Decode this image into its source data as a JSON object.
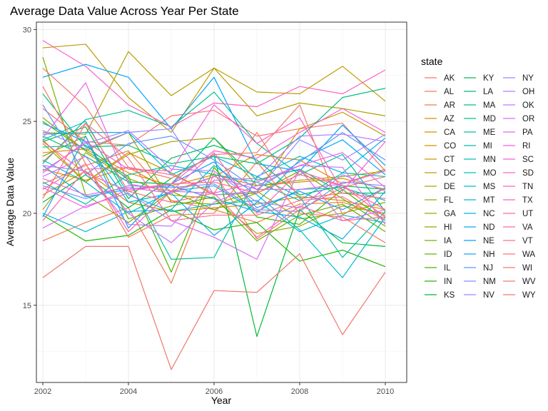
{
  "chart_data": {
    "type": "line",
    "title": "Average Data Value Across Year Per State",
    "xlabel": "Year",
    "ylabel": "Average Data Value",
    "xlim": [
      2001.85,
      2010.5
    ],
    "ylim": [
      10.8,
      30.4
    ],
    "x_ticks": [
      2002,
      2004,
      2006,
      2008,
      2010
    ],
    "y_ticks": [
      15,
      20,
      25,
      30
    ],
    "grid": true,
    "legend": {
      "title": "state",
      "placement": "right"
    },
    "x": [
      2002,
      2003,
      2004,
      2005,
      2006,
      2007,
      2008,
      2009,
      2010
    ],
    "series": [
      {
        "name": "AK",
        "color": "#F8766D",
        "values": [
          25.7,
          23.9,
          23.7,
          25.3,
          25.6,
          24.2,
          24.6,
          24.9,
          22.3
        ]
      },
      {
        "name": "AL",
        "color": "#F37B59",
        "values": [
          18.5,
          19.5,
          20.3,
          16.2,
          22.2,
          18.6,
          20.2,
          21.4,
          22.0
        ]
      },
      {
        "name": "AR",
        "color": "#ED813E",
        "values": [
          21.6,
          22.6,
          23.4,
          20.7,
          20.2,
          19.5,
          20.5,
          20.6,
          19.9
        ]
      },
      {
        "name": "AZ",
        "color": "#E58700",
        "values": [
          22.4,
          21.8,
          22.5,
          21.2,
          22.0,
          23.2,
          22.9,
          21.6,
          22.4
        ]
      },
      {
        "name": "CA",
        "color": "#DE8C00",
        "values": [
          23.3,
          23.5,
          22.2,
          21.5,
          22.1,
          21.5,
          21.7,
          21.9,
          21.3
        ]
      },
      {
        "name": "CO",
        "color": "#D59100",
        "values": [
          21.0,
          22.3,
          20.6,
          20.1,
          20.3,
          20.5,
          20.9,
          20.7,
          20.2
        ]
      },
      {
        "name": "CT",
        "color": "#CB9600",
        "values": [
          24.0,
          21.7,
          23.3,
          22.2,
          21.0,
          21.1,
          24.6,
          25.5,
          24.2
        ]
      },
      {
        "name": "DC",
        "color": "#C09B00",
        "values": [
          29.0,
          29.2,
          26.3,
          24.4,
          27.9,
          26.6,
          26.5,
          28.0,
          26.1
        ]
      },
      {
        "name": "DE",
        "color": "#B49F00",
        "values": [
          24.4,
          24.3,
          28.8,
          26.4,
          27.9,
          25.3,
          26.0,
          25.7,
          25.3
        ]
      },
      {
        "name": "FL",
        "color": "#A6A300",
        "values": [
          23.8,
          21.7,
          23.2,
          23.9,
          24.1,
          21.5,
          21.8,
          22.0,
          22.3
        ]
      },
      {
        "name": "GA",
        "color": "#99A800",
        "values": [
          20.2,
          23.3,
          21.9,
          21.0,
          20.8,
          18.9,
          19.3,
          20.4,
          20.0
        ]
      },
      {
        "name": "HI",
        "color": "#8AAB00",
        "values": [
          25.2,
          23.4,
          24.4,
          20.6,
          20.5,
          21.2,
          19.7,
          20.0,
          20.6
        ]
      },
      {
        "name": "IA",
        "color": "#7AAE00",
        "values": [
          28.5,
          21.0,
          19.5,
          21.2,
          20.2,
          21.1,
          22.3,
          20.8,
          19.3
        ]
      },
      {
        "name": "ID",
        "color": "#65B200",
        "values": [
          23.1,
          24.2,
          19.7,
          20.4,
          20.9,
          18.5,
          19.9,
          20.5,
          19.0
        ]
      },
      {
        "name": "IL",
        "color": "#48B500",
        "values": [
          25.0,
          23.4,
          22.0,
          16.8,
          22.5,
          19.8,
          19.4,
          21.3,
          19.6
        ]
      },
      {
        "name": "IN",
        "color": "#1DB700",
        "values": [
          19.9,
          18.5,
          18.8,
          20.2,
          19.1,
          19.5,
          17.4,
          18.0,
          17.1
        ]
      },
      {
        "name": "KS",
        "color": "#00BA38",
        "values": [
          20.6,
          22.1,
          20.3,
          21.9,
          23.2,
          13.3,
          20.2,
          18.4,
          18.2
        ]
      },
      {
        "name": "KY",
        "color": "#00BC56",
        "values": [
          23.9,
          24.7,
          20.8,
          23.0,
          23.7,
          22.9,
          21.0,
          21.5,
          21.3
        ]
      },
      {
        "name": "LA",
        "color": "#00BE6C",
        "values": [
          24.2,
          23.1,
          21.7,
          21.6,
          24.1,
          21.8,
          22.4,
          21.1,
          21.1
        ]
      },
      {
        "name": "MA",
        "color": "#00BF7F",
        "values": [
          26.5,
          23.6,
          23.7,
          22.7,
          23.1,
          22.7,
          24.1,
          26.3,
          26.8
        ]
      },
      {
        "name": "MD",
        "color": "#00C090",
        "values": [
          22.7,
          25.1,
          25.6,
          24.7,
          26.6,
          23.8,
          22.1,
          23.2,
          20.1
        ]
      },
      {
        "name": "ME",
        "color": "#00C1A0",
        "values": [
          23.6,
          23.7,
          21.8,
          17.5,
          17.6,
          22.0,
          20.9,
          17.6,
          20.1
        ]
      },
      {
        "name": "MI",
        "color": "#00C0AF",
        "values": [
          21.7,
          20.5,
          22.1,
          22.6,
          22.1,
          21.7,
          20.7,
          22.2,
          22.0
        ]
      },
      {
        "name": "MN",
        "color": "#00BFBD",
        "values": [
          22.9,
          21.7,
          20.0,
          21.2,
          21.5,
          20.1,
          21.3,
          21.4,
          20.7
        ]
      },
      {
        "name": "MO",
        "color": "#00BDCA",
        "values": [
          24.0,
          25.0,
          21.0,
          20.1,
          20.5,
          20.7,
          19.0,
          19.9,
          19.5
        ]
      },
      {
        "name": "MS",
        "color": "#00BAD6",
        "values": [
          20.0,
          19.0,
          20.1,
          20.2,
          22.6,
          21.0,
          19.1,
          16.5,
          19.8
        ]
      },
      {
        "name": "MT",
        "color": "#00B6E0",
        "values": [
          24.3,
          24.4,
          24.4,
          22.1,
          23.1,
          22.0,
          23.1,
          22.2,
          24.1
        ]
      },
      {
        "name": "NC",
        "color": "#00B1EA",
        "values": [
          22.6,
          20.9,
          21.3,
          21.5,
          20.8,
          20.1,
          19.8,
          18.6,
          21.2
        ]
      },
      {
        "name": "ND",
        "color": "#00ACF3",
        "values": [
          24.9,
          23.9,
          20.6,
          21.1,
          18.8,
          20.6,
          22.9,
          24.0,
          22.1
        ]
      },
      {
        "name": "NE",
        "color": "#00A5FA",
        "values": [
          27.4,
          28.1,
          27.4,
          24.6,
          27.4,
          22.7,
          22.3,
          24.8,
          22.6
        ]
      },
      {
        "name": "NH",
        "color": "#1F9FFF",
        "values": [
          19.8,
          24.2,
          19.2,
          21.6,
          22.8,
          20.3,
          21.2,
          20.2,
          21.4
        ]
      },
      {
        "name": "NJ",
        "color": "#5C98FF",
        "values": [
          25.9,
          22.1,
          23.8,
          24.2,
          22.9,
          21.3,
          22.8,
          24.4,
          22.9
        ]
      },
      {
        "name": "NM",
        "color": "#7B91FF",
        "values": [
          21.5,
          20.8,
          21.5,
          21.4,
          21.6,
          20.2,
          20.1,
          21.7,
          21.5
        ]
      },
      {
        "name": "NV",
        "color": "#9489FF",
        "values": [
          24.5,
          23.5,
          24.4,
          24.6,
          21.0,
          21.2,
          24.0,
          22.9,
          24.3
        ]
      },
      {
        "name": "NY",
        "color": "#A981FF",
        "values": [
          22.3,
          23.8,
          24.5,
          22.4,
          22.3,
          20.6,
          20.3,
          22.1,
          21.2
        ]
      },
      {
        "name": "OH",
        "color": "#BB79FF",
        "values": [
          22.6,
          22.3,
          19.4,
          19.3,
          21.8,
          21.9,
          24.2,
          24.3,
          23.9
        ]
      },
      {
        "name": "OK",
        "color": "#CA72FF",
        "values": [
          22.0,
          23.1,
          20.0,
          18.4,
          20.6,
          21.5,
          22.6,
          22.5,
          19.4
        ]
      },
      {
        "name": "OR",
        "color": "#D76CF9",
        "values": [
          19.2,
          20.4,
          21.1,
          19.6,
          18.7,
          17.5,
          22.4,
          19.6,
          20.2
        ]
      },
      {
        "name": "PA",
        "color": "#E266F1",
        "values": [
          21.9,
          21.0,
          21.4,
          21.1,
          22.0,
          21.3,
          21.3,
          21.6,
          22.3
        ]
      },
      {
        "name": "RI",
        "color": "#EC62E8",
        "values": [
          24.1,
          27.1,
          21.6,
          21.2,
          21.1,
          21.7,
          22.6,
          23.3,
          21.4
        ]
      },
      {
        "name": "SC",
        "color": "#F35FDE",
        "values": [
          21.4,
          20.3,
          21.3,
          21.6,
          23.4,
          23.0,
          24.4,
          25.7,
          24.4
        ]
      },
      {
        "name": "SD",
        "color": "#F961D1",
        "values": [
          22.2,
          23.9,
          22.4,
          22.3,
          25.9,
          23.8,
          25.2,
          21.2,
          23.9
        ]
      },
      {
        "name": "TN",
        "color": "#FD61C4",
        "values": [
          29.4,
          28.0,
          25.9,
          24.7,
          26.0,
          25.8,
          26.9,
          26.5,
          27.8
        ]
      },
      {
        "name": "TX",
        "color": "#FF63B6",
        "values": [
          21.3,
          22.7,
          19.0,
          21.2,
          23.3,
          20.0,
          22.3,
          21.5,
          20.2
        ]
      },
      {
        "name": "UT",
        "color": "#FF66A7",
        "values": [
          19.6,
          22.4,
          22.5,
          22.1,
          21.1,
          18.7,
          20.4,
          19.6,
          19.8
        ]
      },
      {
        "name": "VA",
        "color": "#FF6A98",
        "values": [
          23.9,
          22.2,
          21.2,
          21.6,
          21.7,
          21.1,
          22.1,
          21.5,
          19.8
        ]
      },
      {
        "name": "VT",
        "color": "#FD6F88",
        "values": [
          20.8,
          24.9,
          23.0,
          19.6,
          19.9,
          19.9,
          20.7,
          20.9,
          19.6
        ]
      },
      {
        "name": "WA",
        "color": "#FA7476",
        "values": [
          22.8,
          24.9,
          21.2,
          20.6,
          21.1,
          24.4,
          20.8,
          21.1,
          20.8
        ]
      },
      {
        "name": "WI",
        "color": "#F6796A",
        "values": [
          27.9,
          25.8,
          22.5,
          21.9,
          23.2,
          23.3,
          25.9,
          19.9,
          21.4
        ]
      },
      {
        "name": "WV",
        "color": "#F27D5F",
        "values": [
          26.9,
          22.7,
          18.7,
          19.9,
          20.0,
          22.8,
          20.0,
          19.8,
          18.4
        ]
      },
      {
        "name": "WY",
        "color": "#F0776D",
        "values": [
          16.5,
          18.2,
          18.2,
          11.5,
          15.8,
          15.7,
          17.8,
          13.4,
          16.8
        ]
      }
    ]
  }
}
